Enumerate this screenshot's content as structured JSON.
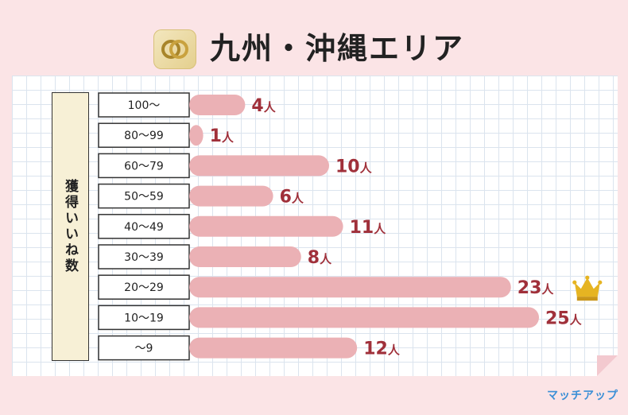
{
  "header": {
    "title": "九州・沖縄エリア"
  },
  "brand": {
    "name": "マッチアップ"
  },
  "colors": {
    "bar": "#ebb1b5",
    "value_text": "#a0303a",
    "crown": "#e6b422"
  },
  "icons": {
    "logo": "double-ring-icon",
    "top_marker": "crown-icon"
  },
  "chart_data": {
    "type": "bar",
    "orientation": "horizontal",
    "ylabel": "獲得いいね数",
    "categories": [
      "100〜",
      "80〜99",
      "60〜79",
      "50〜59",
      "40〜49",
      "30〜39",
      "20〜29",
      "10〜19",
      "〜9"
    ],
    "values": [
      4,
      1,
      10,
      6,
      11,
      8,
      23,
      25,
      12
    ],
    "value_labels": [
      "4人",
      "1人",
      "10人",
      "6人",
      "11人",
      "8人",
      "23人",
      "25人",
      "12人"
    ],
    "unit": "人",
    "xlim": [
      0,
      25
    ],
    "grid": true,
    "highlight_category": "20〜29"
  }
}
